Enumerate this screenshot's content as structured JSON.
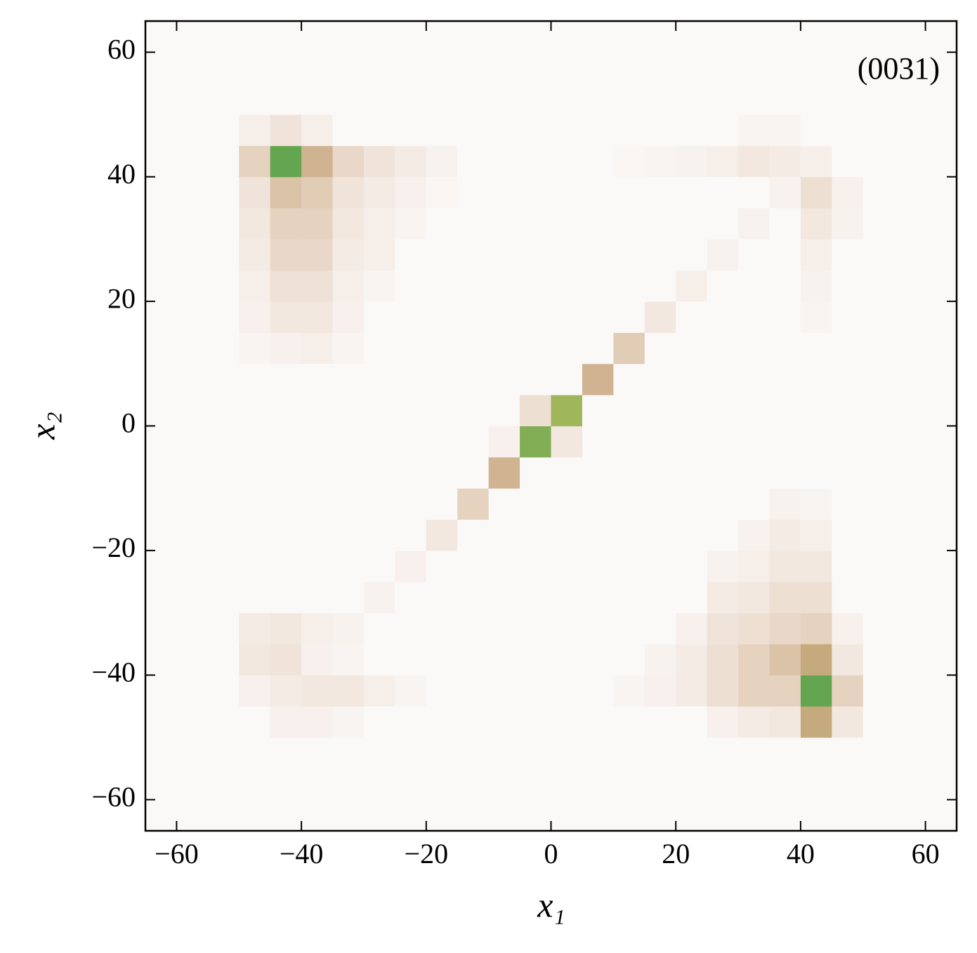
{
  "chart_data": {
    "type": "heatmap",
    "xlabel": "x₁",
    "ylabel": "x₂",
    "annotation": "(0031)",
    "xlim": [
      -65,
      65
    ],
    "ylim": [
      -65,
      65
    ],
    "xticks": [
      {
        "value": -60,
        "label": "−60"
      },
      {
        "value": -40,
        "label": "−40"
      },
      {
        "value": -20,
        "label": "−20"
      },
      0,
      20,
      40,
      60
    ],
    "yticks": [
      {
        "value": -60,
        "label": "−60"
      },
      {
        "value": -40,
        "label": "−40"
      },
      {
        "value": -20,
        "label": "−20"
      },
      0,
      20,
      40,
      60
    ],
    "xbins": [
      -65,
      -60,
      -55,
      -50,
      -45,
      -40,
      -35,
      -30,
      -25,
      -20,
      -15,
      -10,
      -5,
      0,
      5,
      10,
      15,
      20,
      25,
      30,
      35,
      40,
      45,
      50,
      55,
      60,
      65
    ],
    "ybins": [
      -65,
      -60,
      -55,
      -50,
      -45,
      -40,
      -35,
      -30,
      -25,
      -20,
      -15,
      -10,
      -5,
      0,
      5,
      10,
      15,
      20,
      25,
      30,
      35,
      40,
      45,
      50,
      55,
      60,
      65
    ],
    "zlim": [
      0,
      1
    ],
    "colormap": [
      "#fbf9f8",
      "#ecdccf",
      "#c9a981",
      "#9fb65a",
      "#3d9b4a",
      "#1e2f8c",
      "#000000"
    ],
    "z": [
      [
        0,
        0,
        0,
        0,
        0,
        0,
        0,
        0,
        0,
        0,
        0,
        0,
        0,
        0,
        0,
        0,
        0,
        0,
        0,
        0,
        0,
        0,
        0,
        0,
        0,
        0
      ],
      [
        0,
        0,
        0,
        0,
        0,
        0,
        0,
        0,
        0,
        0,
        0,
        0,
        0,
        0,
        0,
        0,
        0,
        0,
        0,
        0,
        0,
        0,
        0,
        0,
        0,
        0
      ],
      [
        0,
        0,
        0,
        0,
        0,
        0,
        0,
        0,
        0,
        0,
        0,
        0,
        0,
        0,
        0,
        0,
        0,
        0,
        0,
        0,
        0,
        0,
        0,
        0,
        0,
        0
      ],
      [
        0,
        0,
        0,
        0,
        0.05,
        0.05,
        0.03,
        0,
        0,
        0,
        0,
        0,
        0,
        0,
        0,
        0,
        0,
        0,
        0.05,
        0.08,
        0.1,
        0.35,
        0.1,
        0,
        0,
        0
      ],
      [
        0,
        0,
        0,
        0.05,
        0.08,
        0.1,
        0.1,
        0.06,
        0.03,
        0,
        0,
        0,
        0,
        0,
        0,
        0.03,
        0.05,
        0.08,
        0.15,
        0.2,
        0.2,
        0.6,
        0.2,
        0,
        0,
        0
      ],
      [
        0,
        0,
        0,
        0.1,
        0.12,
        0.05,
        0.03,
        0,
        0,
        0,
        0,
        0,
        0,
        0,
        0,
        0,
        0.04,
        0.08,
        0.15,
        0.2,
        0.25,
        0.35,
        0.1,
        0,
        0,
        0
      ],
      [
        0,
        0,
        0,
        0.08,
        0.1,
        0.06,
        0.04,
        0,
        0,
        0,
        0,
        0,
        0,
        0,
        0,
        0,
        0,
        0.05,
        0.12,
        0.15,
        0.18,
        0.2,
        0.05,
        0,
        0,
        0
      ],
      [
        0,
        0,
        0,
        0,
        0,
        0,
        0,
        0.04,
        0,
        0,
        0,
        0,
        0,
        0,
        0,
        0,
        0,
        0,
        0.08,
        0.1,
        0.15,
        0.15,
        0,
        0,
        0,
        0
      ],
      [
        0,
        0,
        0,
        0,
        0,
        0,
        0,
        0,
        0.05,
        0,
        0,
        0,
        0,
        0,
        0,
        0,
        0,
        0,
        0.04,
        0.06,
        0.1,
        0.1,
        0,
        0,
        0,
        0
      ],
      [
        0,
        0,
        0,
        0,
        0,
        0,
        0,
        0,
        0,
        0.1,
        0,
        0,
        0,
        0,
        0,
        0,
        0,
        0,
        0,
        0.04,
        0.08,
        0.06,
        0,
        0,
        0,
        0
      ],
      [
        0,
        0,
        0,
        0,
        0,
        0,
        0,
        0,
        0,
        0,
        0.2,
        0,
        0,
        0,
        0,
        0,
        0,
        0,
        0,
        0,
        0.04,
        0.03,
        0,
        0,
        0,
        0
      ],
      [
        0,
        0,
        0,
        0,
        0,
        0,
        0,
        0,
        0,
        0,
        0,
        0.3,
        0,
        0,
        0,
        0,
        0,
        0,
        0,
        0,
        0,
        0,
        0,
        0,
        0,
        0
      ],
      [
        0,
        0,
        0,
        0,
        0,
        0,
        0,
        0,
        0,
        0,
        0,
        0.05,
        0.55,
        0.1,
        0,
        0,
        0,
        0,
        0,
        0,
        0,
        0,
        0,
        0,
        0,
        0
      ],
      [
        0,
        0,
        0,
        0,
        0,
        0,
        0,
        0,
        0,
        0,
        0,
        0,
        0.15,
        0.5,
        0,
        0,
        0,
        0,
        0,
        0,
        0,
        0,
        0,
        0,
        0,
        0
      ],
      [
        0,
        0,
        0,
        0,
        0,
        0,
        0,
        0,
        0,
        0,
        0,
        0,
        0,
        0,
        0.3,
        0,
        0,
        0,
        0,
        0,
        0,
        0,
        0,
        0,
        0,
        0
      ],
      [
        0,
        0,
        0,
        0.03,
        0.05,
        0.06,
        0.03,
        0,
        0,
        0,
        0,
        0,
        0,
        0,
        0,
        0.22,
        0,
        0,
        0,
        0,
        0,
        0,
        0,
        0,
        0,
        0
      ],
      [
        0,
        0,
        0,
        0.05,
        0.1,
        0.1,
        0.05,
        0,
        0,
        0,
        0,
        0,
        0,
        0,
        0,
        0,
        0.1,
        0,
        0,
        0,
        0,
        0.03,
        0,
        0,
        0,
        0
      ],
      [
        0,
        0,
        0,
        0.06,
        0.14,
        0.14,
        0.06,
        0.03,
        0,
        0,
        0,
        0,
        0,
        0,
        0,
        0,
        0,
        0.06,
        0,
        0,
        0,
        0.04,
        0,
        0,
        0,
        0
      ],
      [
        0,
        0,
        0,
        0.08,
        0.18,
        0.18,
        0.08,
        0.06,
        0,
        0,
        0,
        0,
        0,
        0,
        0,
        0,
        0,
        0,
        0.04,
        0,
        0,
        0.06,
        0,
        0,
        0,
        0
      ],
      [
        0,
        0,
        0,
        0.1,
        0.2,
        0.2,
        0.1,
        0.06,
        0.03,
        0,
        0,
        0,
        0,
        0,
        0,
        0,
        0,
        0,
        0,
        0.04,
        0,
        0.1,
        0.04,
        0,
        0,
        0
      ],
      [
        0,
        0,
        0,
        0.12,
        0.25,
        0.22,
        0.12,
        0.08,
        0.05,
        0.02,
        0,
        0,
        0,
        0,
        0,
        0,
        0,
        0,
        0,
        0,
        0.04,
        0.15,
        0.05,
        0,
        0,
        0
      ],
      [
        0,
        0,
        0,
        0.2,
        0.6,
        0.3,
        0.18,
        0.12,
        0.08,
        0.04,
        0,
        0,
        0,
        0,
        0,
        0.02,
        0.03,
        0.04,
        0.06,
        0.1,
        0.08,
        0.06,
        0,
        0,
        0,
        0
      ],
      [
        0,
        0,
        0,
        0.06,
        0.12,
        0.06,
        0,
        0,
        0,
        0,
        0,
        0,
        0,
        0,
        0,
        0,
        0,
        0,
        0,
        0.03,
        0.03,
        0,
        0,
        0,
        0,
        0
      ],
      [
        0,
        0,
        0,
        0,
        0,
        0,
        0,
        0,
        0,
        0,
        0,
        0,
        0,
        0,
        0,
        0,
        0,
        0,
        0,
        0,
        0,
        0,
        0,
        0,
        0,
        0
      ],
      [
        0,
        0,
        0,
        0,
        0,
        0,
        0,
        0,
        0,
        0,
        0,
        0,
        0,
        0,
        0,
        0,
        0,
        0,
        0,
        0,
        0,
        0,
        0,
        0,
        0,
        0
      ],
      [
        0,
        0,
        0,
        0,
        0,
        0,
        0,
        0,
        0,
        0,
        0,
        0,
        0,
        0,
        0,
        0,
        0,
        0,
        0,
        0,
        0,
        0,
        0,
        0,
        0,
        0
      ]
    ]
  }
}
